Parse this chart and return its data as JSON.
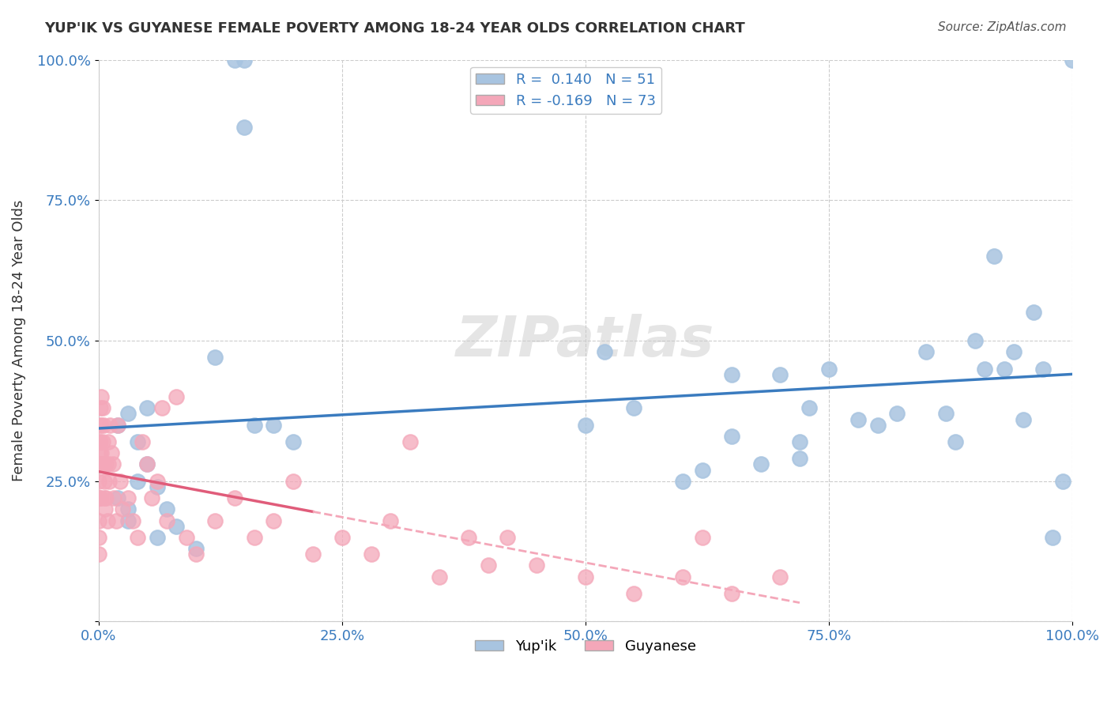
{
  "title": "YUP'IK VS GUYANESE FEMALE POVERTY AMONG 18-24 YEAR OLDS CORRELATION CHART",
  "source": "Source: ZipAtlas.com",
  "xlabel": "",
  "ylabel": "Female Poverty Among 18-24 Year Olds",
  "xlim": [
    0.0,
    1.0
  ],
  "ylim": [
    0.0,
    1.0
  ],
  "xticks": [
    0.0,
    0.25,
    0.5,
    0.75,
    1.0
  ],
  "yticks": [
    0.0,
    0.25,
    0.5,
    0.75,
    1.0
  ],
  "xtick_labels": [
    "0.0%",
    "25.0%",
    "50.0%",
    "75.0%",
    "100.0%"
  ],
  "ytick_labels": [
    "",
    "25.0%",
    "50.0%",
    "75.0%",
    "100.0%"
  ],
  "series1_color": "#a8c4e0",
  "series2_color": "#f4a7b9",
  "series1_line_color": "#3a7bbf",
  "series2_line_color": "#e05c7a",
  "series2_dashed_color": "#f4a7b9",
  "R1": 0.14,
  "N1": 51,
  "R2": -0.169,
  "N2": 73,
  "watermark": "ZIPatlas",
  "background_color": "#ffffff",
  "legend_label1": "Yup'ik",
  "legend_label2": "Guyanese",
  "yupik_x": [
    0.02,
    0.02,
    0.03,
    0.03,
    0.03,
    0.04,
    0.04,
    0.05,
    0.05,
    0.06,
    0.06,
    0.07,
    0.08,
    0.1,
    0.12,
    0.14,
    0.15,
    0.15,
    0.16,
    0.18,
    0.2,
    0.5,
    0.52,
    0.55,
    0.6,
    0.62,
    0.65,
    0.65,
    0.68,
    0.7,
    0.72,
    0.72,
    0.73,
    0.75,
    0.78,
    0.8,
    0.82,
    0.85,
    0.87,
    0.88,
    0.9,
    0.91,
    0.92,
    0.93,
    0.94,
    0.95,
    0.96,
    0.97,
    0.98,
    0.99,
    1.0
  ],
  "yupik_y": [
    0.35,
    0.22,
    0.37,
    0.2,
    0.18,
    0.32,
    0.25,
    0.38,
    0.28,
    0.24,
    0.15,
    0.2,
    0.17,
    0.13,
    0.47,
    1.0,
    1.0,
    0.88,
    0.35,
    0.35,
    0.32,
    0.35,
    0.48,
    0.38,
    0.25,
    0.27,
    0.44,
    0.33,
    0.28,
    0.44,
    0.29,
    0.32,
    0.38,
    0.45,
    0.36,
    0.35,
    0.37,
    0.48,
    0.37,
    0.32,
    0.5,
    0.45,
    0.65,
    0.45,
    0.48,
    0.36,
    0.55,
    0.45,
    0.15,
    0.25,
    1.0
  ],
  "guyanese_x": [
    0.0,
    0.0,
    0.0,
    0.0,
    0.0,
    0.0,
    0.0,
    0.001,
    0.001,
    0.001,
    0.001,
    0.002,
    0.002,
    0.002,
    0.002,
    0.003,
    0.003,
    0.003,
    0.004,
    0.004,
    0.004,
    0.005,
    0.005,
    0.006,
    0.006,
    0.007,
    0.008,
    0.008,
    0.009,
    0.01,
    0.01,
    0.011,
    0.012,
    0.013,
    0.015,
    0.016,
    0.018,
    0.02,
    0.022,
    0.025,
    0.03,
    0.035,
    0.04,
    0.045,
    0.05,
    0.055,
    0.06,
    0.065,
    0.07,
    0.08,
    0.09,
    0.1,
    0.12,
    0.14,
    0.16,
    0.18,
    0.2,
    0.22,
    0.25,
    0.28,
    0.3,
    0.32,
    0.35,
    0.38,
    0.4,
    0.42,
    0.45,
    0.5,
    0.55,
    0.6,
    0.62,
    0.65,
    0.7
  ],
  "guyanese_y": [
    0.32,
    0.28,
    0.25,
    0.22,
    0.18,
    0.15,
    0.12,
    0.35,
    0.3,
    0.28,
    0.22,
    0.38,
    0.32,
    0.28,
    0.22,
    0.4,
    0.35,
    0.3,
    0.38,
    0.32,
    0.28,
    0.35,
    0.28,
    0.25,
    0.22,
    0.2,
    0.28,
    0.22,
    0.18,
    0.32,
    0.28,
    0.25,
    0.35,
    0.3,
    0.28,
    0.22,
    0.18,
    0.35,
    0.25,
    0.2,
    0.22,
    0.18,
    0.15,
    0.32,
    0.28,
    0.22,
    0.25,
    0.38,
    0.18,
    0.4,
    0.15,
    0.12,
    0.18,
    0.22,
    0.15,
    0.18,
    0.25,
    0.12,
    0.15,
    0.12,
    0.18,
    0.32,
    0.08,
    0.15,
    0.1,
    0.15,
    0.1,
    0.08,
    0.05,
    0.08,
    0.15,
    0.05,
    0.08
  ]
}
